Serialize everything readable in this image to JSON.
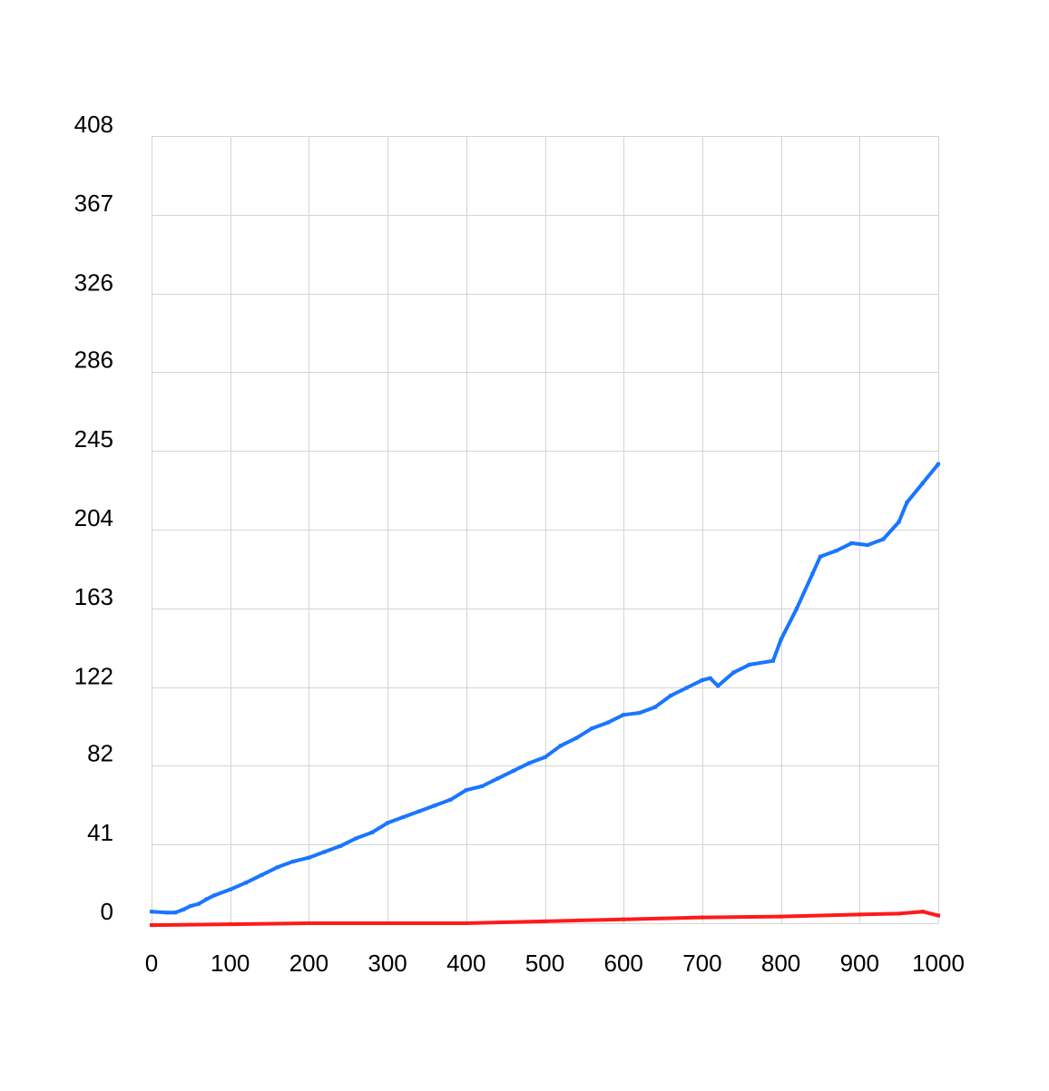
{
  "chart_data": {
    "type": "line",
    "title": "",
    "xlabel": "",
    "ylabel": "",
    "xlim": [
      0,
      1000
    ],
    "ylim": [
      0,
      408
    ],
    "x_ticks": [
      0,
      100,
      200,
      300,
      400,
      500,
      600,
      700,
      800,
      900,
      1000
    ],
    "x_tick_labels": [
      "0",
      "100",
      "200",
      "300",
      "400",
      "500",
      "600",
      "700",
      "800",
      "900",
      "1000"
    ],
    "y_ticks": [
      0,
      41,
      82,
      122,
      163,
      204,
      245,
      286,
      326,
      367,
      408
    ],
    "y_tick_labels": [
      "0",
      "41",
      "82",
      "122",
      "163",
      "204",
      "245",
      "286",
      "326",
      "367",
      "408"
    ],
    "grid": true,
    "legend": "none",
    "series": [
      {
        "color": "#1a75ff",
        "points": [
          [
            0,
            6
          ],
          [
            20,
            5.5
          ],
          [
            30,
            5.5
          ],
          [
            40,
            7
          ],
          [
            50,
            9
          ],
          [
            60,
            10
          ],
          [
            70,
            12.5
          ],
          [
            80,
            14.5
          ],
          [
            100,
            17.5
          ],
          [
            120,
            21
          ],
          [
            140,
            25
          ],
          [
            160,
            29
          ],
          [
            180,
            32
          ],
          [
            200,
            34
          ],
          [
            220,
            37
          ],
          [
            240,
            40
          ],
          [
            260,
            44
          ],
          [
            280,
            47
          ],
          [
            300,
            52
          ],
          [
            320,
            55
          ],
          [
            340,
            58
          ],
          [
            360,
            61
          ],
          [
            380,
            64
          ],
          [
            400,
            69
          ],
          [
            420,
            71
          ],
          [
            440,
            75
          ],
          [
            460,
            79
          ],
          [
            480,
            83
          ],
          [
            500,
            86
          ],
          [
            520,
            92
          ],
          [
            540,
            96
          ],
          [
            560,
            101
          ],
          [
            580,
            104
          ],
          [
            600,
            108
          ],
          [
            620,
            109
          ],
          [
            640,
            112
          ],
          [
            660,
            118
          ],
          [
            680,
            122
          ],
          [
            700,
            126
          ],
          [
            710,
            127
          ],
          [
            720,
            123
          ],
          [
            740,
            130
          ],
          [
            760,
            134
          ],
          [
            790,
            136
          ],
          [
            800,
            147
          ],
          [
            820,
            163
          ],
          [
            840,
            181
          ],
          [
            850,
            190
          ],
          [
            870,
            193
          ],
          [
            890,
            197
          ],
          [
            910,
            196
          ],
          [
            930,
            199
          ],
          [
            950,
            208
          ],
          [
            960,
            218
          ],
          [
            980,
            228
          ],
          [
            1000,
            238
          ]
        ]
      },
      {
        "color": "#ff1a1a",
        "points": [
          [
            0,
            -1
          ],
          [
            100,
            -0.5
          ],
          [
            200,
            0
          ],
          [
            300,
            0
          ],
          [
            400,
            0
          ],
          [
            500,
            1
          ],
          [
            600,
            2
          ],
          [
            700,
            3
          ],
          [
            800,
            3.5
          ],
          [
            850,
            4
          ],
          [
            900,
            4.5
          ],
          [
            950,
            5
          ],
          [
            980,
            6
          ],
          [
            1000,
            4
          ]
        ]
      }
    ]
  }
}
